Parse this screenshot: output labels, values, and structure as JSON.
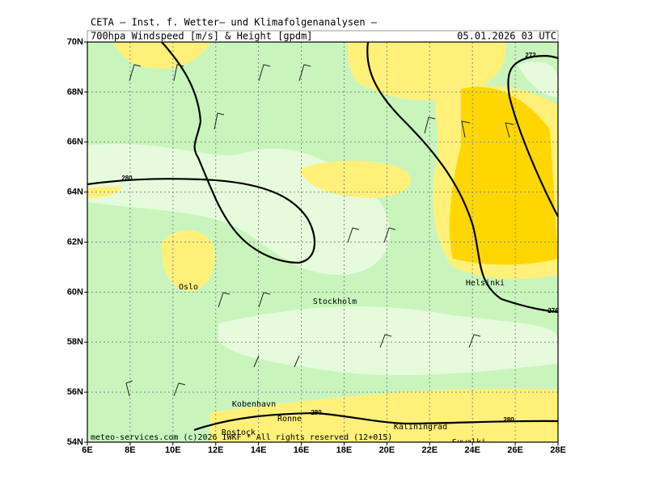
{
  "header": {
    "institute": "CETA – Inst. f. Wetter– und Klimafolgenanalysen –",
    "product": "700hpa Windspeed [m/s] & Height [gpdm]",
    "valid_time": "05.01.2026 03 UTC"
  },
  "axes": {
    "lat_labels": [
      "70N",
      "68N",
      "66N",
      "64N",
      "62N",
      "60N",
      "58N",
      "56N",
      "54N"
    ],
    "lon_labels": [
      "6E",
      "8E",
      "10E",
      "12E",
      "14E",
      "16E",
      "18E",
      "20E",
      "22E",
      "24E",
      "26E",
      "28E"
    ]
  },
  "contour_labels": [
    "280",
    "272",
    "276",
    "280",
    "280"
  ],
  "places": [
    "Oslo",
    "Stockholm",
    "Helsinki",
    "Kobenhavn",
    "Ronne",
    "Rostock",
    "Kaliningrad",
    "Suwalki"
  ],
  "footer": "meteo-services.com (c)2026 IWKF * All rights reserved (12+015)"
}
